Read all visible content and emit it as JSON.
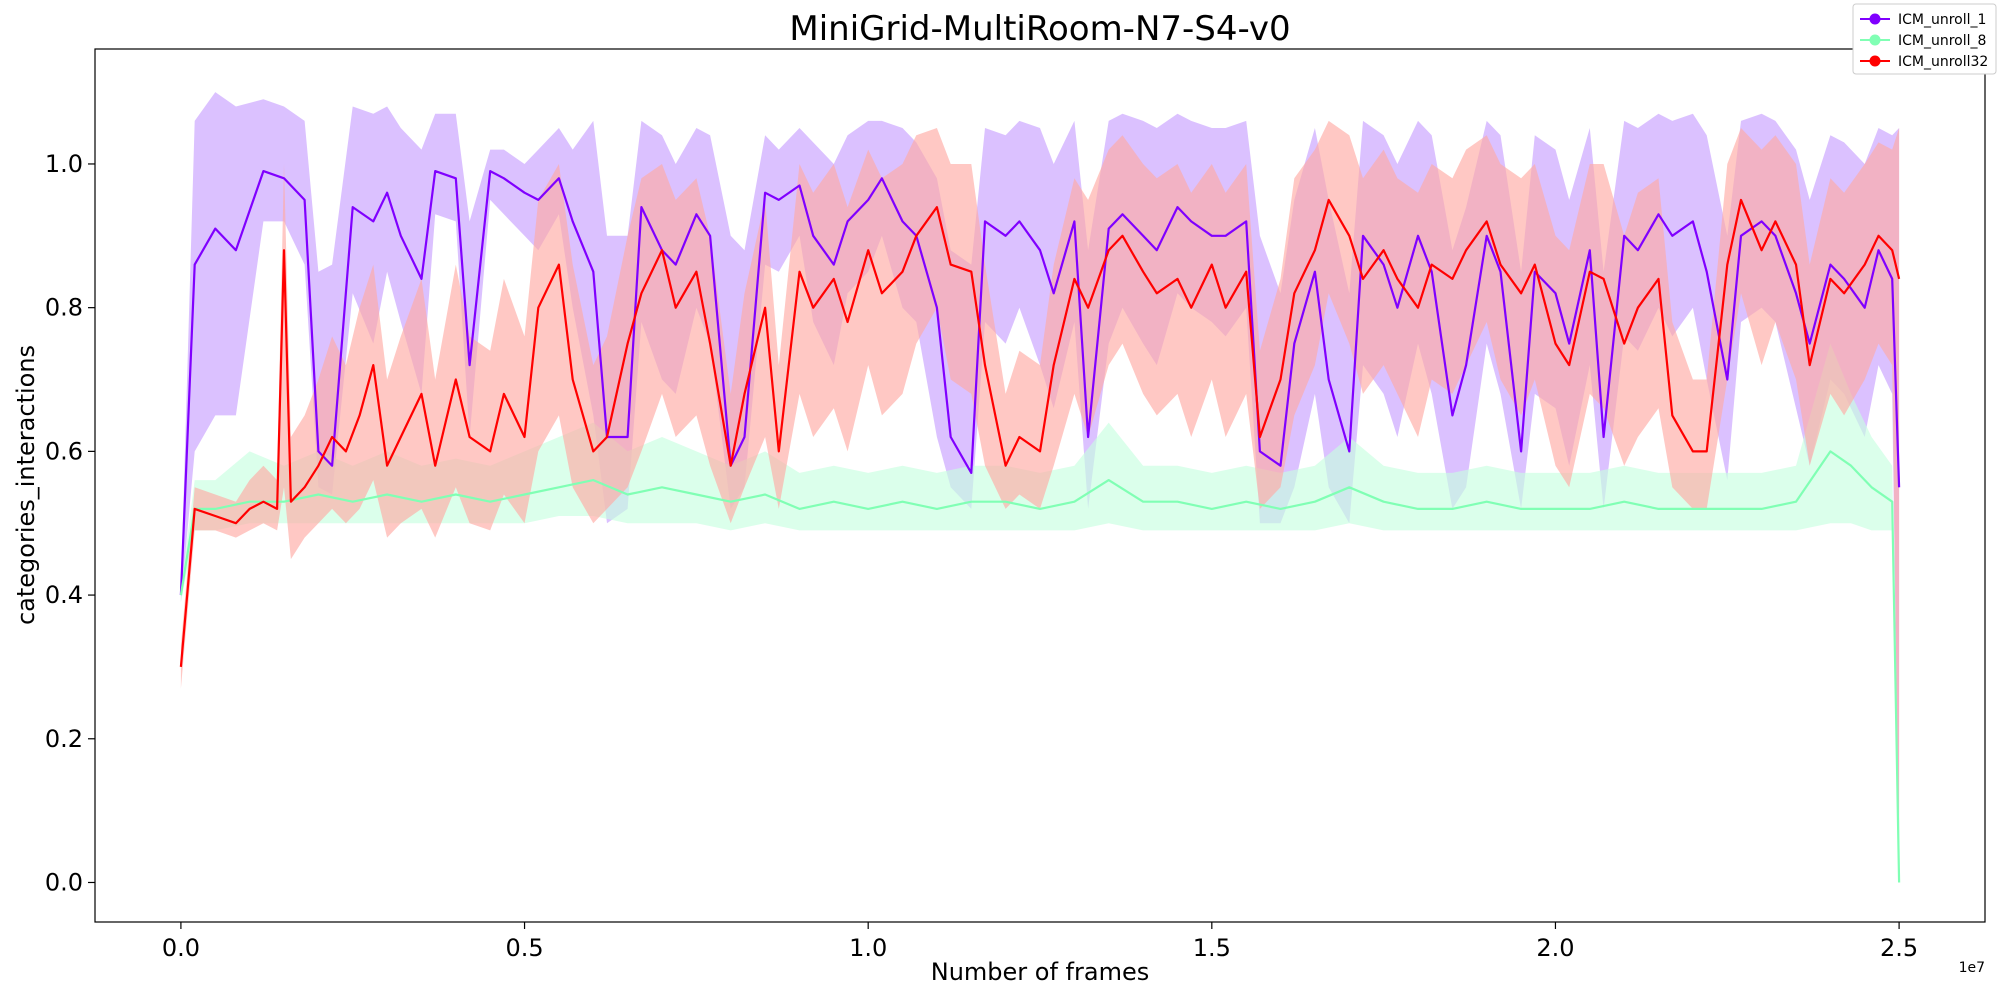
{
  "chart_data": {
    "type": "line",
    "title": "MiniGrid-MultiRoom-N7-S4-v0",
    "xlabel": "Number of frames",
    "ylabel": "categories_interactions",
    "x_offset_label": "1e7",
    "xlim": [
      -0.125,
      2.625
    ],
    "ylim": [
      -0.055,
      1.16
    ],
    "x_ticks": [
      0.0,
      0.5,
      1.0,
      1.5,
      2.0,
      2.5
    ],
    "x_tick_labels": [
      "0.0",
      "0.5",
      "1.0",
      "1.5",
      "2.0",
      "2.5"
    ],
    "y_ticks": [
      0.0,
      0.2,
      0.4,
      0.6,
      0.8,
      1.0
    ],
    "y_tick_labels": [
      "0.0",
      "0.2",
      "0.4",
      "0.6",
      "0.8",
      "1.0"
    ],
    "grid": false,
    "legend_position": "top-right",
    "series": [
      {
        "name": "ICM_unroll_1",
        "color": "#8000ff",
        "band_color": "#c8a0ff",
        "x": [
          0.0,
          0.02,
          0.05,
          0.08,
          0.12,
          0.15,
          0.18,
          0.2,
          0.22,
          0.25,
          0.28,
          0.3,
          0.32,
          0.35,
          0.37,
          0.4,
          0.42,
          0.45,
          0.47,
          0.5,
          0.52,
          0.55,
          0.57,
          0.6,
          0.62,
          0.65,
          0.67,
          0.7,
          0.72,
          0.75,
          0.77,
          0.8,
          0.82,
          0.85,
          0.87,
          0.9,
          0.92,
          0.95,
          0.97,
          1.0,
          1.02,
          1.05,
          1.07,
          1.1,
          1.12,
          1.15,
          1.17,
          1.2,
          1.22,
          1.25,
          1.27,
          1.3,
          1.32,
          1.35,
          1.37,
          1.4,
          1.42,
          1.45,
          1.47,
          1.5,
          1.52,
          1.55,
          1.57,
          1.6,
          1.62,
          1.65,
          1.67,
          1.7,
          1.72,
          1.75,
          1.77,
          1.8,
          1.82,
          1.85,
          1.87,
          1.9,
          1.92,
          1.95,
          1.97,
          2.0,
          2.02,
          2.05,
          2.07,
          2.1,
          2.12,
          2.15,
          2.17,
          2.2,
          2.22,
          2.25,
          2.27,
          2.3,
          2.32,
          2.35,
          2.37,
          2.4,
          2.42,
          2.45,
          2.47,
          2.49,
          2.5
        ],
        "y": [
          0.4,
          0.86,
          0.91,
          0.88,
          0.99,
          0.98,
          0.95,
          0.6,
          0.58,
          0.94,
          0.92,
          0.96,
          0.9,
          0.84,
          0.99,
          0.98,
          0.72,
          0.99,
          0.98,
          0.96,
          0.95,
          0.98,
          0.92,
          0.85,
          0.62,
          0.62,
          0.94,
          0.88,
          0.86,
          0.93,
          0.9,
          0.58,
          0.62,
          0.96,
          0.95,
          0.97,
          0.9,
          0.86,
          0.92,
          0.95,
          0.98,
          0.92,
          0.9,
          0.8,
          0.62,
          0.57,
          0.92,
          0.9,
          0.92,
          0.88,
          0.82,
          0.92,
          0.62,
          0.91,
          0.93,
          0.9,
          0.88,
          0.94,
          0.92,
          0.9,
          0.9,
          0.92,
          0.6,
          0.58,
          0.75,
          0.85,
          0.7,
          0.6,
          0.9,
          0.86,
          0.8,
          0.9,
          0.85,
          0.65,
          0.72,
          0.9,
          0.85,
          0.6,
          0.85,
          0.82,
          0.75,
          0.88,
          0.62,
          0.9,
          0.88,
          0.93,
          0.9,
          0.92,
          0.85,
          0.7,
          0.9,
          0.92,
          0.9,
          0.82,
          0.75,
          0.86,
          0.84,
          0.8,
          0.88,
          0.84,
          0.55
        ],
        "lower": [
          0.39,
          0.6,
          0.65,
          0.65,
          0.92,
          0.92,
          0.86,
          0.55,
          0.54,
          0.82,
          0.75,
          0.85,
          0.78,
          0.68,
          0.93,
          0.92,
          0.62,
          0.95,
          0.93,
          0.9,
          0.88,
          0.93,
          0.8,
          0.65,
          0.5,
          0.52,
          0.78,
          0.7,
          0.68,
          0.8,
          0.75,
          0.52,
          0.55,
          0.86,
          0.85,
          0.9,
          0.78,
          0.72,
          0.82,
          0.85,
          0.9,
          0.8,
          0.78,
          0.62,
          0.55,
          0.52,
          0.78,
          0.75,
          0.8,
          0.72,
          0.66,
          0.78,
          0.52,
          0.75,
          0.8,
          0.75,
          0.72,
          0.82,
          0.8,
          0.78,
          0.76,
          0.8,
          0.5,
          0.5,
          0.55,
          0.68,
          0.55,
          0.5,
          0.72,
          0.68,
          0.62,
          0.75,
          0.68,
          0.52,
          0.55,
          0.75,
          0.68,
          0.52,
          0.68,
          0.66,
          0.58,
          0.72,
          0.52,
          0.76,
          0.74,
          0.8,
          0.76,
          0.8,
          0.7,
          0.56,
          0.78,
          0.8,
          0.78,
          0.66,
          0.58,
          0.7,
          0.68,
          0.62,
          0.72,
          0.68,
          0.0
        ],
        "upper": [
          0.41,
          1.06,
          1.1,
          1.08,
          1.09,
          1.08,
          1.06,
          0.85,
          0.86,
          1.08,
          1.07,
          1.08,
          1.05,
          1.02,
          1.07,
          1.07,
          0.92,
          1.02,
          1.02,
          1.0,
          1.02,
          1.05,
          1.02,
          1.06,
          0.9,
          0.9,
          1.06,
          1.04,
          1.0,
          1.05,
          1.04,
          0.9,
          0.88,
          1.04,
          1.02,
          1.05,
          1.03,
          1.0,
          1.04,
          1.06,
          1.06,
          1.05,
          1.03,
          0.98,
          0.88,
          0.86,
          1.05,
          1.04,
          1.06,
          1.05,
          1.0,
          1.06,
          0.88,
          1.06,
          1.07,
          1.06,
          1.05,
          1.07,
          1.06,
          1.05,
          1.05,
          1.06,
          0.9,
          0.82,
          0.95,
          1.05,
          0.95,
          0.82,
          1.06,
          1.04,
          1.0,
          1.06,
          1.04,
          0.88,
          0.94,
          1.06,
          1.04,
          0.85,
          1.04,
          1.02,
          0.95,
          1.05,
          0.85,
          1.06,
          1.05,
          1.07,
          1.06,
          1.07,
          1.04,
          0.9,
          1.06,
          1.07,
          1.06,
          1.02,
          0.95,
          1.04,
          1.03,
          1.0,
          1.05,
          1.04,
          1.05
        ]
      },
      {
        "name": "ICM_unroll_8",
        "color": "#80ffb4",
        "band_color": "#c8ffe0",
        "x": [
          0.0,
          0.02,
          0.05,
          0.1,
          0.15,
          0.2,
          0.25,
          0.3,
          0.35,
          0.4,
          0.45,
          0.5,
          0.55,
          0.6,
          0.65,
          0.7,
          0.75,
          0.8,
          0.85,
          0.9,
          0.95,
          1.0,
          1.05,
          1.1,
          1.15,
          1.2,
          1.25,
          1.3,
          1.35,
          1.4,
          1.45,
          1.5,
          1.55,
          1.6,
          1.65,
          1.7,
          1.75,
          1.8,
          1.85,
          1.9,
          1.95,
          2.0,
          2.05,
          2.1,
          2.15,
          2.2,
          2.25,
          2.3,
          2.35,
          2.4,
          2.43,
          2.46,
          2.49,
          2.5
        ],
        "y": [
          0.4,
          0.52,
          0.52,
          0.53,
          0.53,
          0.54,
          0.53,
          0.54,
          0.53,
          0.54,
          0.53,
          0.54,
          0.55,
          0.56,
          0.54,
          0.55,
          0.54,
          0.53,
          0.54,
          0.52,
          0.53,
          0.52,
          0.53,
          0.52,
          0.53,
          0.53,
          0.52,
          0.53,
          0.56,
          0.53,
          0.53,
          0.52,
          0.53,
          0.52,
          0.53,
          0.55,
          0.53,
          0.52,
          0.52,
          0.53,
          0.52,
          0.52,
          0.52,
          0.53,
          0.52,
          0.52,
          0.52,
          0.52,
          0.53,
          0.6,
          0.58,
          0.55,
          0.53,
          0.0
        ],
        "lower": [
          0.39,
          0.49,
          0.49,
          0.5,
          0.5,
          0.5,
          0.5,
          0.5,
          0.5,
          0.5,
          0.5,
          0.5,
          0.51,
          0.51,
          0.5,
          0.5,
          0.5,
          0.49,
          0.5,
          0.49,
          0.49,
          0.49,
          0.49,
          0.49,
          0.49,
          0.49,
          0.49,
          0.49,
          0.5,
          0.49,
          0.49,
          0.49,
          0.49,
          0.49,
          0.49,
          0.5,
          0.49,
          0.49,
          0.49,
          0.49,
          0.49,
          0.49,
          0.49,
          0.49,
          0.49,
          0.49,
          0.49,
          0.49,
          0.49,
          0.5,
          0.5,
          0.49,
          0.49,
          0.0
        ],
        "upper": [
          0.41,
          0.56,
          0.56,
          0.6,
          0.58,
          0.6,
          0.58,
          0.6,
          0.58,
          0.59,
          0.58,
          0.6,
          0.62,
          0.64,
          0.6,
          0.62,
          0.6,
          0.58,
          0.6,
          0.57,
          0.58,
          0.57,
          0.58,
          0.57,
          0.58,
          0.58,
          0.57,
          0.58,
          0.64,
          0.58,
          0.58,
          0.57,
          0.58,
          0.57,
          0.58,
          0.62,
          0.58,
          0.57,
          0.57,
          0.58,
          0.57,
          0.57,
          0.57,
          0.58,
          0.57,
          0.57,
          0.57,
          0.57,
          0.58,
          0.75,
          0.68,
          0.62,
          0.58,
          0.0
        ]
      },
      {
        "name": "ICM_unroll32",
        "color": "#ff0000",
        "band_color": "#ffaaa5",
        "x": [
          0.0,
          0.02,
          0.05,
          0.08,
          0.1,
          0.12,
          0.14,
          0.15,
          0.16,
          0.18,
          0.2,
          0.22,
          0.24,
          0.26,
          0.28,
          0.3,
          0.32,
          0.35,
          0.37,
          0.4,
          0.42,
          0.45,
          0.47,
          0.5,
          0.52,
          0.55,
          0.57,
          0.6,
          0.62,
          0.65,
          0.67,
          0.7,
          0.72,
          0.75,
          0.77,
          0.8,
          0.82,
          0.85,
          0.87,
          0.9,
          0.92,
          0.95,
          0.97,
          1.0,
          1.02,
          1.05,
          1.07,
          1.1,
          1.12,
          1.15,
          1.17,
          1.2,
          1.22,
          1.25,
          1.27,
          1.3,
          1.32,
          1.35,
          1.37,
          1.4,
          1.42,
          1.45,
          1.47,
          1.5,
          1.52,
          1.55,
          1.57,
          1.6,
          1.62,
          1.65,
          1.67,
          1.7,
          1.72,
          1.75,
          1.77,
          1.8,
          1.82,
          1.85,
          1.87,
          1.9,
          1.92,
          1.95,
          1.97,
          2.0,
          2.02,
          2.05,
          2.07,
          2.1,
          2.12,
          2.15,
          2.17,
          2.2,
          2.22,
          2.25,
          2.27,
          2.3,
          2.32,
          2.35,
          2.37,
          2.4,
          2.42,
          2.45,
          2.47,
          2.49,
          2.5
        ],
        "y": [
          0.3,
          0.52,
          0.51,
          0.5,
          0.52,
          0.53,
          0.52,
          0.88,
          0.53,
          0.55,
          0.58,
          0.62,
          0.6,
          0.65,
          0.72,
          0.58,
          0.62,
          0.68,
          0.58,
          0.7,
          0.62,
          0.6,
          0.68,
          0.62,
          0.8,
          0.86,
          0.7,
          0.6,
          0.62,
          0.75,
          0.82,
          0.88,
          0.8,
          0.85,
          0.75,
          0.58,
          0.68,
          0.8,
          0.6,
          0.85,
          0.8,
          0.84,
          0.78,
          0.88,
          0.82,
          0.85,
          0.9,
          0.94,
          0.86,
          0.85,
          0.72,
          0.58,
          0.62,
          0.6,
          0.72,
          0.84,
          0.8,
          0.88,
          0.9,
          0.85,
          0.82,
          0.84,
          0.8,
          0.86,
          0.8,
          0.85,
          0.62,
          0.7,
          0.82,
          0.88,
          0.95,
          0.9,
          0.84,
          0.88,
          0.84,
          0.8,
          0.86,
          0.84,
          0.88,
          0.92,
          0.86,
          0.82,
          0.86,
          0.75,
          0.72,
          0.85,
          0.84,
          0.75,
          0.8,
          0.84,
          0.65,
          0.6,
          0.6,
          0.86,
          0.95,
          0.88,
          0.92,
          0.86,
          0.72,
          0.84,
          0.82,
          0.86,
          0.9,
          0.88,
          0.84
        ],
        "lower": [
          0.27,
          0.49,
          0.49,
          0.48,
          0.49,
          0.5,
          0.49,
          0.55,
          0.45,
          0.48,
          0.5,
          0.52,
          0.5,
          0.52,
          0.56,
          0.48,
          0.5,
          0.52,
          0.48,
          0.55,
          0.5,
          0.49,
          0.54,
          0.5,
          0.6,
          0.65,
          0.55,
          0.5,
          0.52,
          0.55,
          0.6,
          0.68,
          0.62,
          0.65,
          0.58,
          0.5,
          0.55,
          0.62,
          0.52,
          0.68,
          0.62,
          0.66,
          0.6,
          0.72,
          0.65,
          0.68,
          0.75,
          0.8,
          0.7,
          0.68,
          0.58,
          0.52,
          0.54,
          0.52,
          0.58,
          0.68,
          0.62,
          0.72,
          0.75,
          0.68,
          0.65,
          0.68,
          0.62,
          0.7,
          0.62,
          0.68,
          0.52,
          0.55,
          0.65,
          0.72,
          0.82,
          0.75,
          0.68,
          0.72,
          0.68,
          0.62,
          0.7,
          0.68,
          0.72,
          0.78,
          0.7,
          0.65,
          0.7,
          0.58,
          0.55,
          0.68,
          0.66,
          0.58,
          0.62,
          0.66,
          0.55,
          0.52,
          0.52,
          0.7,
          0.82,
          0.72,
          0.78,
          0.7,
          0.58,
          0.68,
          0.65,
          0.7,
          0.75,
          0.72,
          0.0
        ],
        "upper": [
          0.33,
          0.55,
          0.54,
          0.53,
          0.56,
          0.58,
          0.56,
          1.0,
          0.62,
          0.65,
          0.7,
          0.76,
          0.72,
          0.8,
          0.86,
          0.7,
          0.76,
          0.84,
          0.7,
          0.86,
          0.76,
          0.74,
          0.84,
          0.76,
          0.95,
          1.0,
          0.86,
          0.72,
          0.76,
          0.9,
          0.98,
          1.0,
          0.95,
          0.98,
          0.9,
          0.68,
          0.82,
          0.95,
          0.72,
          1.0,
          0.96,
          1.0,
          0.94,
          1.02,
          0.98,
          1.0,
          1.04,
          1.05,
          1.0,
          1.0,
          0.86,
          0.68,
          0.74,
          0.72,
          0.86,
          0.98,
          0.95,
          1.02,
          1.04,
          1.0,
          0.98,
          1.0,
          0.96,
          1.0,
          0.96,
          1.0,
          0.74,
          0.84,
          0.98,
          1.02,
          1.06,
          1.04,
          0.98,
          1.02,
          0.98,
          0.96,
          1.0,
          0.98,
          1.02,
          1.04,
          1.0,
          0.98,
          1.0,
          0.9,
          0.88,
          1.0,
          1.0,
          0.9,
          0.96,
          0.98,
          0.78,
          0.7,
          0.7,
          1.0,
          1.05,
          1.02,
          1.04,
          1.0,
          0.86,
          0.98,
          0.96,
          1.0,
          1.03,
          1.02,
          1.05
        ]
      }
    ]
  }
}
